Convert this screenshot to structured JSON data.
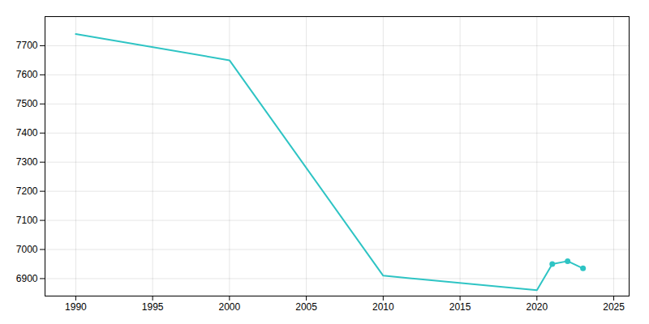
{
  "chart_data": {
    "type": "line",
    "x": [
      1990,
      2000,
      2010,
      2020,
      2021,
      2022,
      2023
    ],
    "values": [
      7740,
      7650,
      6910,
      6860,
      6950,
      6960,
      6935
    ],
    "color": "#2EC4C4",
    "marker": "circle",
    "marker_x": [
      2021,
      2022,
      2023
    ],
    "xlim": [
      1988,
      2026
    ],
    "ylim": [
      6840,
      7800
    ],
    "xticks": [
      1990,
      1995,
      2000,
      2005,
      2010,
      2015,
      2020,
      2025
    ],
    "yticks": [
      6900,
      7000,
      7100,
      7200,
      7300,
      7400,
      7500,
      7600,
      7700
    ],
    "grid": true
  }
}
